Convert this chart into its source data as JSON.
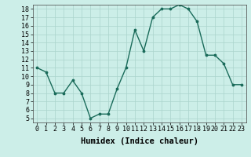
{
  "x": [
    0,
    1,
    2,
    3,
    4,
    5,
    6,
    7,
    8,
    9,
    10,
    11,
    12,
    13,
    14,
    15,
    16,
    17,
    18,
    19,
    20,
    21,
    22,
    23
  ],
  "y": [
    11,
    10.5,
    8,
    8,
    9.5,
    8,
    5,
    5.5,
    5.5,
    8.5,
    11,
    15.5,
    13,
    17,
    18,
    18,
    18.5,
    18,
    16.5,
    12.5,
    12.5,
    11.5,
    9,
    9
  ],
  "xlabel": "Humidex (Indice chaleur)",
  "xlim_min": -0.5,
  "xlim_max": 23.5,
  "ylim_min": 4.5,
  "ylim_max": 18.5,
  "yticks": [
    5,
    6,
    7,
    8,
    9,
    10,
    11,
    12,
    13,
    14,
    15,
    16,
    17,
    18
  ],
  "xticks": [
    0,
    1,
    2,
    3,
    4,
    5,
    6,
    7,
    8,
    9,
    10,
    11,
    12,
    13,
    14,
    15,
    16,
    17,
    18,
    19,
    20,
    21,
    22,
    23
  ],
  "line_color": "#1a6b5a",
  "marker": ".",
  "marker_size": 3.5,
  "bg_color": "#cceee8",
  "grid_color": "#aad4cc",
  "xlabel_fontsize": 7.5,
  "tick_fontsize": 6,
  "linewidth": 1.0
}
